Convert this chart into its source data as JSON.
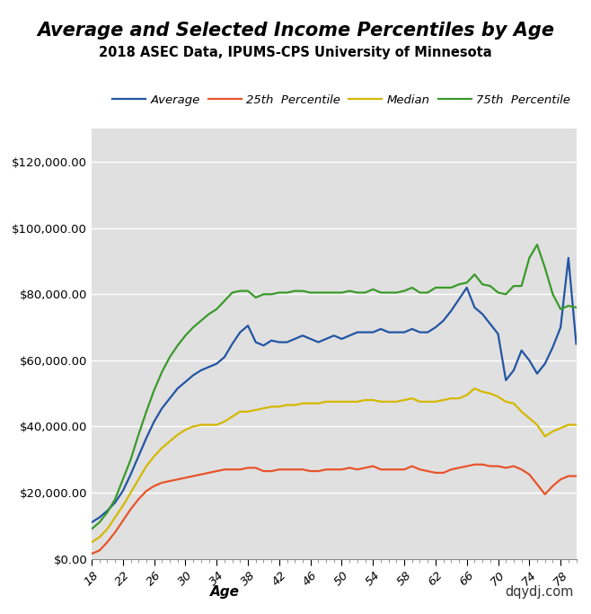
{
  "title": "Average and Selected Income Percentiles by Age",
  "subtitle": "2018 ASEC Data, IPUMS-CPS University of Minnesota",
  "xlabel": "Age",
  "watermark": "dqydj.com",
  "bg_color": "#e0e0e0",
  "fig_color": "#ffffff",
  "ages": [
    18,
    19,
    20,
    21,
    22,
    23,
    24,
    25,
    26,
    27,
    28,
    29,
    30,
    31,
    32,
    33,
    34,
    35,
    36,
    37,
    38,
    39,
    40,
    41,
    42,
    43,
    44,
    45,
    46,
    47,
    48,
    49,
    50,
    51,
    52,
    53,
    54,
    55,
    56,
    57,
    58,
    59,
    60,
    61,
    62,
    63,
    64,
    65,
    66,
    67,
    68,
    69,
    70,
    71,
    72,
    73,
    74,
    75,
    76,
    77,
    78,
    79,
    80
  ],
  "average": [
    11000,
    12500,
    14500,
    17000,
    20500,
    25500,
    31000,
    36500,
    41500,
    45500,
    48500,
    51500,
    53500,
    55500,
    57000,
    58000,
    59000,
    61000,
    65000,
    68500,
    70500,
    65500,
    64500,
    66000,
    65500,
    65500,
    66500,
    67500,
    66500,
    65500,
    66500,
    67500,
    66500,
    67500,
    68500,
    68500,
    68500,
    69500,
    68500,
    68500,
    68500,
    69500,
    68500,
    68500,
    70000,
    72000,
    75000,
    78500,
    82000,
    76000,
    74000,
    71000,
    68000,
    54000,
    57000,
    63000,
    60000,
    56000,
    59000,
    64000,
    70000,
    91000,
    65000
  ],
  "p25": [
    1500,
    2500,
    5000,
    8000,
    11500,
    15000,
    18000,
    20500,
    22000,
    23000,
    23500,
    24000,
    24500,
    25000,
    25500,
    26000,
    26500,
    27000,
    27000,
    27000,
    27500,
    27500,
    26500,
    26500,
    27000,
    27000,
    27000,
    27000,
    26500,
    26500,
    27000,
    27000,
    27000,
    27500,
    27000,
    27500,
    28000,
    27000,
    27000,
    27000,
    27000,
    28000,
    27000,
    26500,
    26000,
    26000,
    27000,
    27500,
    28000,
    28500,
    28500,
    28000,
    28000,
    27500,
    28000,
    27000,
    25500,
    22500,
    19500,
    22000,
    24000,
    25000,
    25000
  ],
  "median": [
    5000,
    6500,
    9000,
    12500,
    16000,
    20000,
    24000,
    28000,
    31000,
    33500,
    35500,
    37500,
    39000,
    40000,
    40500,
    40500,
    40500,
    41500,
    43000,
    44500,
    44500,
    45000,
    45500,
    46000,
    46000,
    46500,
    46500,
    47000,
    47000,
    47000,
    47500,
    47500,
    47500,
    47500,
    47500,
    48000,
    48000,
    47500,
    47500,
    47500,
    48000,
    48500,
    47500,
    47500,
    47500,
    48000,
    48500,
    48500,
    49500,
    51500,
    50500,
    50000,
    49000,
    47500,
    47000,
    44500,
    42500,
    40500,
    37000,
    38500,
    39500,
    40500,
    40500
  ],
  "p75": [
    9000,
    11000,
    14000,
    18000,
    24000,
    30000,
    37500,
    44500,
    51000,
    56500,
    61000,
    64500,
    67500,
    70000,
    72000,
    74000,
    75500,
    78000,
    80500,
    81000,
    81000,
    79000,
    80000,
    80000,
    80500,
    80500,
    81000,
    81000,
    80500,
    80500,
    80500,
    80500,
    80500,
    81000,
    80500,
    80500,
    81500,
    80500,
    80500,
    80500,
    81000,
    82000,
    80500,
    80500,
    82000,
    82000,
    82000,
    83000,
    83500,
    86000,
    83000,
    82500,
    80500,
    80000,
    82500,
    82500,
    91000,
    95000,
    88000,
    80000,
    75500,
    76500,
    76000
  ],
  "line_colors": {
    "average": "#2255a4",
    "p25": "#e8542a",
    "median": "#d4b800",
    "p75": "#3a9a2a"
  },
  "legend_labels": [
    "Average",
    "25th  Percentile",
    "Median",
    "75th  Percentile"
  ],
  "ylim": [
    0,
    130000
  ],
  "yticks": [
    0,
    20000,
    40000,
    60000,
    80000,
    100000,
    120000
  ],
  "xticks": [
    18,
    22,
    26,
    30,
    34,
    38,
    42,
    46,
    50,
    54,
    58,
    62,
    66,
    70,
    74,
    78
  ]
}
